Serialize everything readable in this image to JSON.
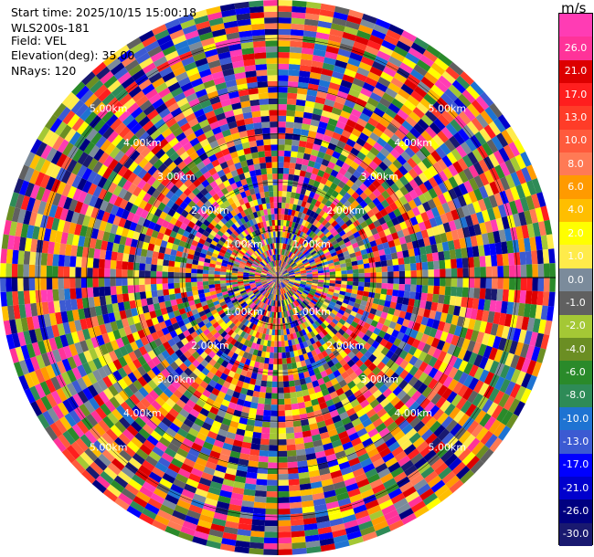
{
  "header": {
    "start_time": "Start time: 2025/10/15 15:00:18",
    "instrument": "WLS200s-181",
    "field": "Field: VEL",
    "elevation": "Elevation(deg): 35.00",
    "nrays": "NRays: 120"
  },
  "colorbar": {
    "unit": "m/s",
    "levels": [
      {
        "label": "",
        "color": "#ff3cb4"
      },
      {
        "label": "26.0",
        "color": "#ff3399"
      },
      {
        "label": "21.0",
        "color": "#dd0000"
      },
      {
        "label": "17.0",
        "color": "#ff1e1e"
      },
      {
        "label": "13.0",
        "color": "#ff3c28"
      },
      {
        "label": "10.0",
        "color": "#ff5a3c"
      },
      {
        "label": "8.0",
        "color": "#ff7a55"
      },
      {
        "label": "6.0",
        "color": "#ff9a00"
      },
      {
        "label": "4.0",
        "color": "#ffbe00"
      },
      {
        "label": "2.0",
        "color": "#ffff00"
      },
      {
        "label": "1.0",
        "color": "#ffeb4a"
      },
      {
        "label": "0.0",
        "color": "#7b8b9b"
      },
      {
        "label": "-1.0",
        "color": "#606060"
      },
      {
        "label": "-2.0",
        "color": "#a4c835"
      },
      {
        "label": "-4.0",
        "color": "#6b8e23"
      },
      {
        "label": "-6.0",
        "color": "#2a8a2a"
      },
      {
        "label": "-8.0",
        "color": "#2e8b57"
      },
      {
        "label": "-10.0",
        "color": "#1e73d2"
      },
      {
        "label": "-13.0",
        "color": "#3c5ad2"
      },
      {
        "label": "-17.0",
        "color": "#0000ff"
      },
      {
        "label": "-21.0",
        "color": "#0000cd"
      },
      {
        "label": "-26.0",
        "color": "#000080"
      },
      {
        "label": "-30.0",
        "color": "#191970"
      }
    ]
  },
  "range_labels": [
    "1.00km",
    "2.00km",
    "3.00km",
    "4.00km",
    "5.00km"
  ],
  "chart_data": {
    "type": "ppi",
    "field": "VEL",
    "unit": "m/s",
    "elevation_deg": 35.0,
    "n_rays": 120,
    "range_rings_km": [
      1,
      2,
      3,
      4,
      5
    ],
    "colorbar_range": [
      -30.0,
      26.0
    ]
  }
}
